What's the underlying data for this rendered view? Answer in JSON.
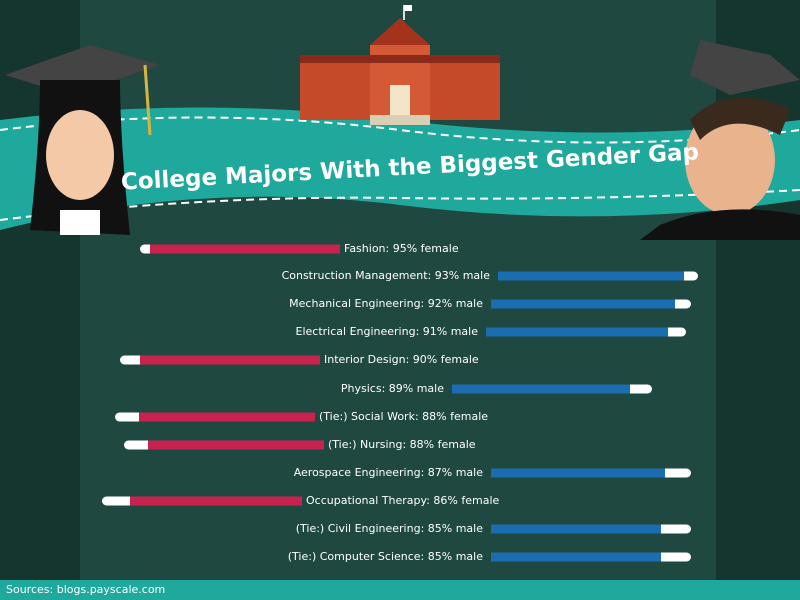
{
  "chart_data": {
    "type": "bar",
    "title": "College Majors With the Biggest Gender Gap",
    "categories": [
      "Fashion: 95% female",
      "Construction Management: 93% male",
      "Mechanical Engineering: 92% male",
      "Electrical Engineering: 91% male",
      "Interior Design: 90% female",
      "Physics: 89% male",
      "(Tie:) Social Work: 88% female",
      "(Tie:) Nursing: 88% female",
      "Aerospace Engineering: 87% male",
      "Occupational Therapy: 86% female",
      "(Tie:) Civil Engineering: 85% male",
      "(Tie:) Computer Science: 85% male"
    ],
    "values": [
      95,
      93,
      92,
      91,
      90,
      89,
      88,
      88,
      87,
      86,
      85,
      85
    ],
    "sides": [
      "left",
      "right",
      "right",
      "right",
      "left",
      "right",
      "left",
      "left",
      "right",
      "left",
      "right",
      "right"
    ],
    "colors": {
      "left": "#c8234f",
      "right": "#1a6db0"
    },
    "xlim": [
      0,
      100
    ],
    "source": "Sources: blogs.payscale.com"
  }
}
